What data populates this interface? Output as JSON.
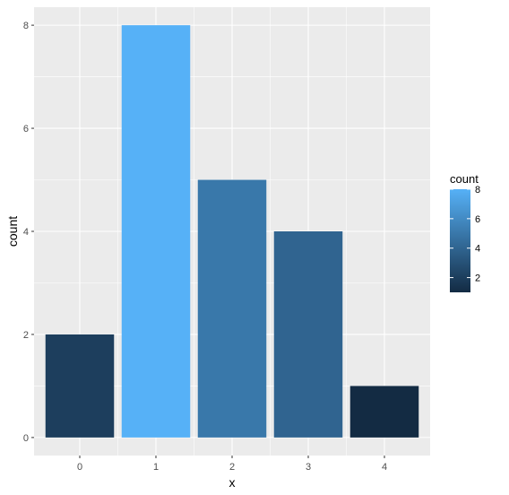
{
  "chart_data": {
    "type": "bar",
    "categories": [
      "0",
      "1",
      "2",
      "3",
      "4"
    ],
    "values": [
      2,
      8,
      5,
      4,
      1
    ],
    "xlabel": "x",
    "ylabel": "count",
    "ylim": [
      -0.35,
      8.35
    ],
    "yticks": [
      0,
      2,
      4,
      6,
      8
    ],
    "grid": true,
    "fill_scale": {
      "variable": "count",
      "low_color": "#132B43",
      "high_color": "#56B1F7",
      "min": 1,
      "max": 8
    },
    "legend": {
      "title": "count",
      "placement": "right",
      "breaks": [
        2,
        4,
        6,
        8
      ]
    },
    "panel_color": "#EBEBEB",
    "grid_color": "#FFFFFF"
  }
}
